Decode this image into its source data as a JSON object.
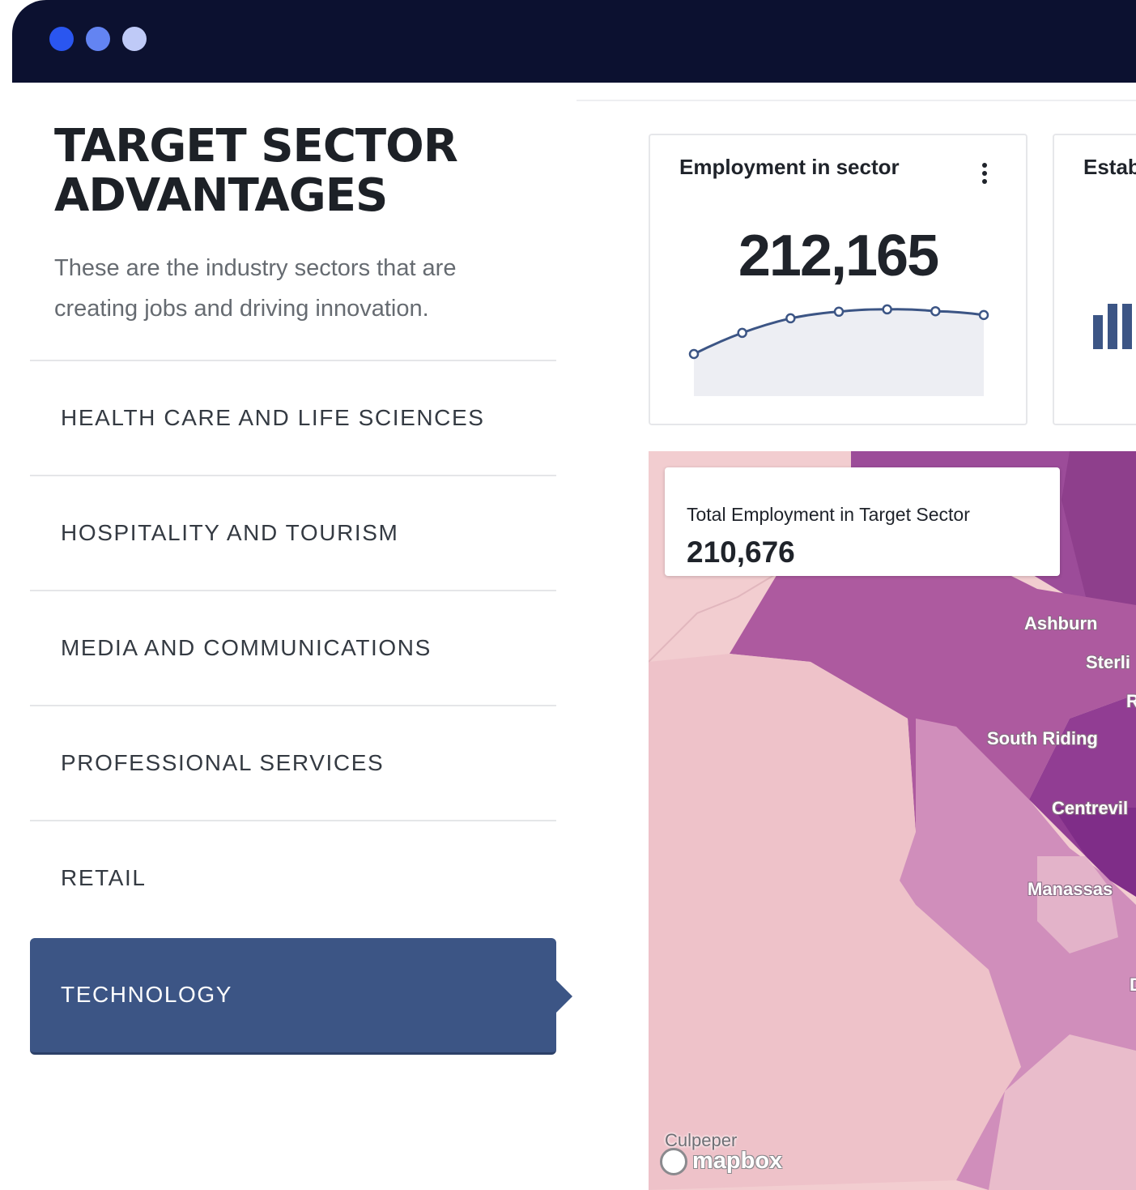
{
  "page": {
    "title": "TARGET SECTOR ADVANTAGES",
    "subtitle": "These are the industry sectors that are creating jobs and driving innovation."
  },
  "sectors": [
    {
      "label": "HEALTH CARE AND LIFE SCIENCES",
      "active": false
    },
    {
      "label": "HOSPITALITY AND TOURISM",
      "active": false
    },
    {
      "label": "MEDIA AND COMMUNICATIONS",
      "active": false
    },
    {
      "label": "PROFESSIONAL SERVICES",
      "active": false
    },
    {
      "label": "RETAIL",
      "active": false
    },
    {
      "label": "TECHNOLOGY",
      "active": true
    }
  ],
  "cards": {
    "employment": {
      "title": "Employment in sector",
      "value": "212,165",
      "menu_icon": "kebab-menu-icon",
      "sparkline_relative_values": [
        0.0,
        0.45,
        0.76,
        0.9,
        0.95,
        0.91,
        0.83
      ]
    },
    "establishments": {
      "title": "Estab"
    }
  },
  "map": {
    "info_title": "Total Employment in Target Sector",
    "info_value": "210,676",
    "places": {
      "ashburn": "Ashburn",
      "sterling": "Sterli",
      "reston": "R",
      "south_riding": "South Riding",
      "centreville": "Centrevil",
      "manassas": "Manassas",
      "dale": "D",
      "culpeper": "Culpeper"
    },
    "attribution": "mapbox"
  },
  "colors": {
    "window_bar": "#0c1130",
    "accent": "#3c5585",
    "dot1": "#2a56f0",
    "dot2": "#6384f2",
    "dot3": "#bfcaf7"
  }
}
